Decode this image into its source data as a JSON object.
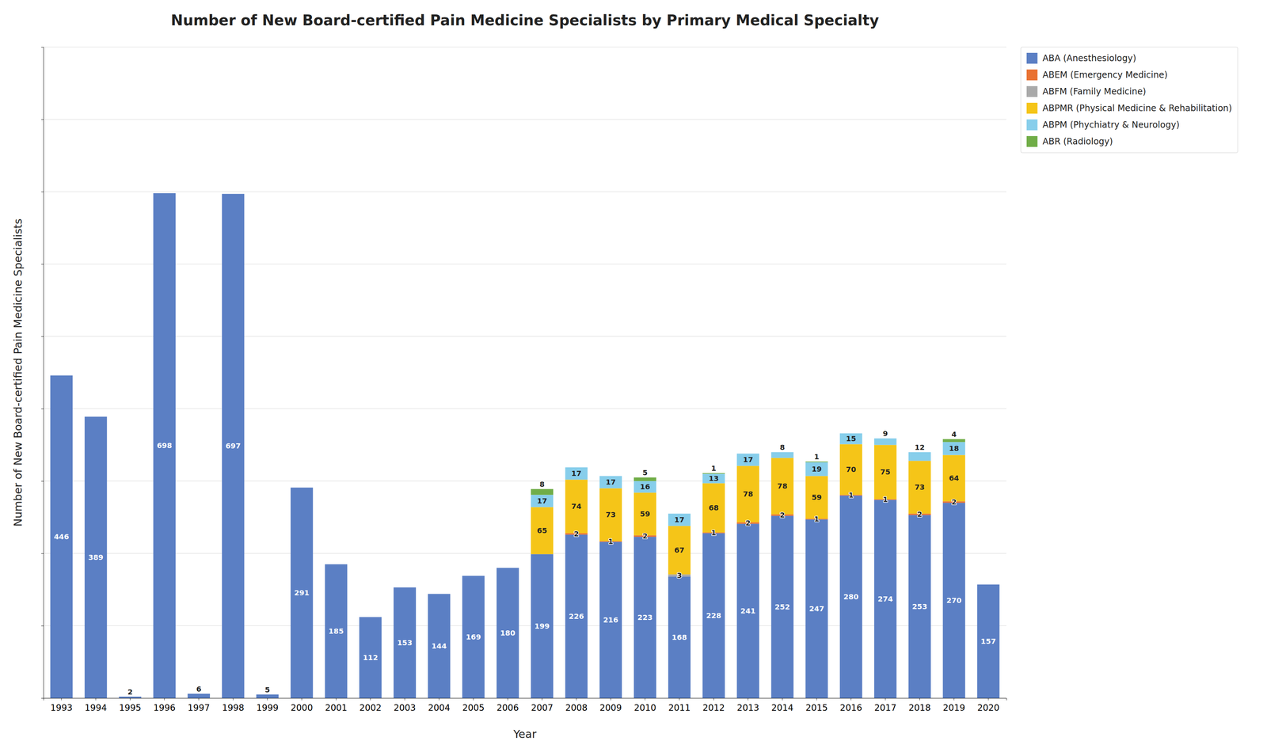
{
  "chart_data": {
    "type": "bar",
    "stacked": true,
    "title": "Number of New Board-certified Pain Medicine Specialists by Primary Medical Specialty",
    "xlabel": "Year",
    "ylabel": "Number of New Board-certified Pain Medicine Specialists",
    "categories": [
      "1993",
      "1994",
      "1995",
      "1996",
      "1997",
      "1998",
      "1999",
      "2000",
      "2001",
      "2002",
      "2003",
      "2004",
      "2005",
      "2006",
      "2007",
      "2008",
      "2009",
      "2010",
      "2011",
      "2012",
      "2013",
      "2014",
      "2015",
      "2016",
      "2017",
      "2018",
      "2019",
      "2020"
    ],
    "series": [
      {
        "name": "ABA (Anesthesiology)",
        "color": "#5b7fc4",
        "values": [
          446,
          389,
          2,
          698,
          6,
          697,
          5,
          291,
          185,
          112,
          153,
          144,
          169,
          180,
          199,
          226,
          216,
          223,
          168,
          228,
          241,
          252,
          247,
          280,
          274,
          253,
          270,
          157
        ]
      },
      {
        "name": "ABEM (Emergency Medicine)",
        "color": "#e97132",
        "values": [
          0,
          0,
          0,
          0,
          0,
          0,
          0,
          0,
          0,
          0,
          0,
          0,
          0,
          0,
          0,
          2,
          1,
          2,
          0,
          1,
          2,
          2,
          1,
          1,
          1,
          2,
          2,
          0
        ]
      },
      {
        "name": "ABFM (Family Medicine)",
        "color": "#a9a9a9",
        "values": [
          0,
          0,
          0,
          0,
          0,
          0,
          0,
          0,
          0,
          0,
          0,
          0,
          0,
          0,
          0,
          0,
          0,
          0,
          3,
          0,
          0,
          0,
          0,
          0,
          0,
          0,
          0,
          0
        ]
      },
      {
        "name": "ABPMR (Physical Medicine & Rehabilitation)",
        "color": "#f5c518",
        "values": [
          0,
          0,
          0,
          0,
          0,
          0,
          0,
          0,
          0,
          0,
          0,
          0,
          0,
          0,
          65,
          74,
          73,
          59,
          67,
          68,
          78,
          78,
          59,
          70,
          75,
          73,
          64,
          0
        ]
      },
      {
        "name": "ABPM (Phychiatry & Neurology)",
        "color": "#87ceeb",
        "values": [
          0,
          0,
          0,
          0,
          0,
          0,
          0,
          0,
          0,
          0,
          0,
          0,
          0,
          0,
          17,
          17,
          17,
          16,
          17,
          13,
          17,
          8,
          19,
          15,
          9,
          12,
          18,
          0
        ]
      },
      {
        "name": "ABR (Radiology)",
        "color": "#70ad47",
        "values": [
          0,
          0,
          0,
          0,
          0,
          0,
          0,
          0,
          0,
          0,
          0,
          0,
          0,
          0,
          8,
          0,
          0,
          5,
          0,
          1,
          0,
          0,
          1,
          0,
          0,
          0,
          4,
          0
        ]
      }
    ],
    "ylim": [
      0,
      900
    ],
    "yticks": [
      0,
      100,
      200,
      300,
      400,
      500,
      600,
      700,
      800,
      900
    ],
    "grid": true,
    "legend": "upper right",
    "data_labels": true,
    "tick_labels": "x"
  }
}
